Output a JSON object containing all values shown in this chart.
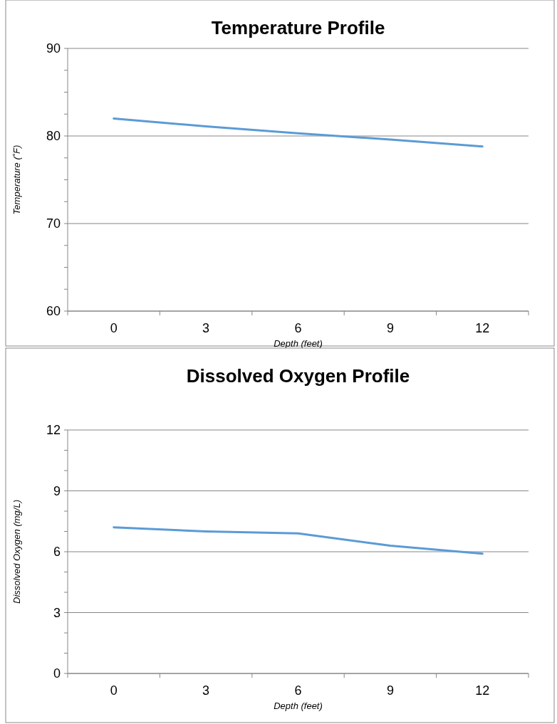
{
  "chart_data": [
    {
      "type": "line",
      "title": "Temperature Profile",
      "xlabel": "Depth (feet)",
      "ylabel": "Temperature (˚F)",
      "categories": [
        "0",
        "3",
        "6",
        "9",
        "12"
      ],
      "series": [
        {
          "color": "#5b9bd5",
          "values": [
            82,
            81.1,
            80.3,
            79.6,
            78.8
          ]
        }
      ],
      "ylim": [
        60,
        90
      ],
      "yticks": [
        60,
        {
          "value": 62.5,
          "label": null
        },
        {
          "value": 65,
          "label": null
        },
        {
          "value": 67.5,
          "label": null
        },
        70,
        {
          "value": 72.5,
          "label": null
        },
        {
          "value": 75,
          "label": null
        },
        {
          "value": 77.5,
          "label": null
        },
        80,
        {
          "value": 82.5,
          "label": null
        },
        {
          "value": 85,
          "label": null
        },
        {
          "value": 87.5,
          "label": null
        },
        90
      ],
      "grid": "y"
    },
    {
      "type": "line",
      "title": "Dissolved Oxygen Profile",
      "xlabel": "Depth (feet)",
      "ylabel": "Dissolved Oxygen (mg/L)",
      "categories": [
        "0",
        "3",
        "6",
        "9",
        "12"
      ],
      "series": [
        {
          "color": "#5b9bd5",
          "values": [
            7.2,
            7.0,
            6.9,
            6.3,
            5.9
          ]
        }
      ],
      "ylim": [
        0,
        12
      ],
      "yticks": [
        0,
        {
          "value": 1,
          "label": null
        },
        {
          "value": 2,
          "label": null
        },
        3,
        {
          "value": 4,
          "label": null
        },
        {
          "value": 5,
          "label": null
        },
        6,
        {
          "value": 7,
          "label": null
        },
        {
          "value": 8,
          "label": null
        },
        9,
        {
          "value": 10,
          "label": null
        },
        {
          "value": 11,
          "label": null
        },
        12
      ],
      "grid": "y"
    }
  ]
}
